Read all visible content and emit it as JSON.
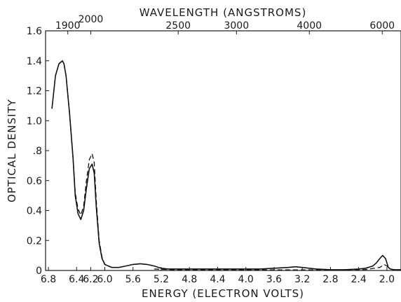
{
  "chart_data": {
    "type": "line",
    "title": "",
    "xlabel": "ENERGY (ELECTRON VOLTS)",
    "ylabel": "OPTICAL DENSITY",
    "top_xlabel": "WAVELENGTH (ANGSTROMS)",
    "x_reversed": true,
    "xlim": [
      6.84,
      1.8
    ],
    "ylim": [
      0,
      1.6
    ],
    "x_ticks": [
      6.8,
      6.4,
      6.2,
      6.0,
      5.6,
      5.2,
      4.8,
      4.4,
      4.0,
      3.6,
      3.2,
      2.8,
      2.4,
      2.0
    ],
    "x_tick_labels": [
      "6.8",
      "6.4",
      "6.2",
      "6.0",
      "5.6",
      "5.2",
      "4.8",
      "4.4",
      "4.0",
      "3.6",
      "3.2",
      "2.8",
      "2.4",
      "2.0"
    ],
    "y_ticks": [
      0,
      0.2,
      0.4,
      0.6,
      0.8,
      1.0,
      1.2,
      1.4,
      1.6
    ],
    "y_tick_labels": [
      "0",
      "0.2",
      "0.4",
      "0.6",
      ".8",
      "1.0",
      "1.2",
      "1.4",
      "1.6"
    ],
    "top_ticks": [
      {
        "label": "1900",
        "energy": 6.525
      },
      {
        "label": "2000",
        "energy": 6.199
      },
      {
        "label": "2500",
        "energy": 4.959
      },
      {
        "label": "3000",
        "energy": 4.133
      },
      {
        "label": "4000",
        "energy": 3.1
      },
      {
        "label": "6000",
        "energy": 2.066
      }
    ],
    "series": [
      {
        "style": "solid",
        "x": [
          6.75,
          6.7,
          6.65,
          6.6,
          6.58,
          6.55,
          6.5,
          6.45,
          6.42,
          6.38,
          6.34,
          6.3,
          6.26,
          6.22,
          6.18,
          6.15,
          6.12,
          6.08,
          6.04,
          6.0,
          5.95,
          5.9,
          5.8,
          5.7,
          5.6,
          5.5,
          5.4,
          5.3,
          5.2,
          5.1,
          5.0,
          4.8,
          4.6,
          4.4,
          4.2,
          4.0,
          3.8,
          3.6,
          3.4,
          3.3,
          3.2,
          3.1,
          3.0,
          2.8,
          2.6,
          2.4,
          2.3,
          2.2,
          2.15,
          2.1,
          2.06,
          2.02,
          2.0,
          1.98,
          1.95,
          1.9,
          1.85,
          1.8
        ],
        "y": [
          1.08,
          1.3,
          1.38,
          1.4,
          1.38,
          1.3,
          1.05,
          0.75,
          0.5,
          0.38,
          0.34,
          0.4,
          0.55,
          0.68,
          0.71,
          0.65,
          0.42,
          0.18,
          0.08,
          0.04,
          0.03,
          0.02,
          0.02,
          0.03,
          0.04,
          0.045,
          0.04,
          0.03,
          0.015,
          0.01,
          0.01,
          0.01,
          0.01,
          0.01,
          0.01,
          0.01,
          0.01,
          0.015,
          0.02,
          0.025,
          0.02,
          0.015,
          0.01,
          0.005,
          0.005,
          0.01,
          0.015,
          0.03,
          0.05,
          0.08,
          0.1,
          0.08,
          0.05,
          0.02,
          0.01,
          0.005,
          0.005,
          0.005
        ]
      },
      {
        "style": "dashed",
        "x": [
          6.58,
          6.55,
          6.5,
          6.45,
          6.42,
          6.38,
          6.34,
          6.3,
          6.26,
          6.22,
          6.18,
          6.15,
          6.12,
          6.08,
          6.04,
          6.0,
          5.9,
          5.8
        ],
        "y": [
          1.38,
          1.3,
          1.05,
          0.75,
          0.52,
          0.41,
          0.37,
          0.43,
          0.6,
          0.74,
          0.78,
          0.72,
          0.46,
          0.2,
          0.09,
          0.04,
          0.02,
          0.02
        ]
      },
      {
        "style": "dashed",
        "x": [
          5.3,
          5.0,
          4.6,
          4.2,
          3.8,
          3.4,
          3.0,
          2.6,
          2.3,
          2.1,
          2.04,
          2.0,
          1.95,
          1.9,
          1.8
        ],
        "y": [
          0.01,
          0.004,
          0.004,
          0.004,
          0.004,
          0.004,
          0.004,
          0.004,
          0.006,
          0.02,
          0.04,
          0.03,
          0.01,
          0.004,
          0.004
        ]
      }
    ]
  }
}
